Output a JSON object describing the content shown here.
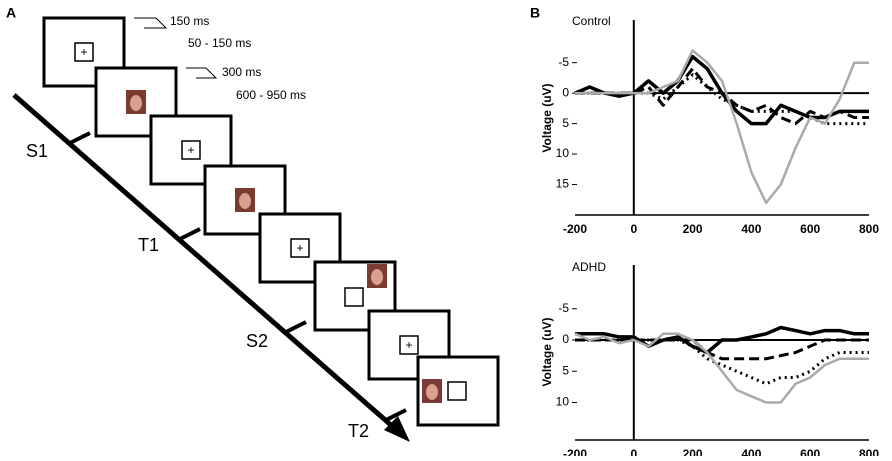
{
  "panel_a": {
    "label": "A",
    "timings": [
      "150 ms",
      "50 - 150 ms",
      "300 ms",
      "600 - 950 ms"
    ],
    "fixation": "+",
    "trial_labels": [
      "S1",
      "T1",
      "S2",
      "T2"
    ]
  },
  "panel_b": {
    "label": "B"
  },
  "chart_data": [
    {
      "type": "line",
      "title": "Control",
      "y_label": "Voltage (uV)",
      "y_inverted": true,
      "xlim": [
        -200,
        800
      ],
      "xticks": [
        -200,
        0,
        200,
        400,
        600,
        800
      ],
      "ylim": [
        -12,
        20
      ],
      "yticks": [
        -5,
        0,
        5,
        10,
        15
      ],
      "x": [
        -200,
        -150,
        -100,
        -50,
        0,
        50,
        100,
        150,
        200,
        250,
        300,
        350,
        400,
        450,
        500,
        550,
        600,
        650,
        700,
        750,
        800
      ],
      "series": [
        {
          "color": "#000000",
          "dash": "solid",
          "width": 3.5,
          "values": [
            0,
            -1,
            0,
            0.5,
            0,
            -2,
            0,
            -2,
            -6,
            -4,
            0,
            3,
            5,
            5,
            2,
            3,
            4,
            4,
            3,
            3,
            3
          ]
        },
        {
          "color": "#000000",
          "dash": "dashed",
          "width": 3,
          "values": [
            0,
            0,
            0,
            0,
            0,
            -1,
            2,
            -1,
            -4,
            -1,
            0,
            2,
            3,
            2,
            4,
            5,
            3,
            4,
            3,
            4,
            4
          ]
        },
        {
          "color": "#000000",
          "dash": "dotted",
          "width": 3,
          "values": [
            0,
            0,
            0,
            0,
            0,
            0,
            1,
            -1,
            -3,
            -1,
            1,
            2,
            3,
            3,
            3,
            3,
            4,
            5,
            5,
            5,
            5
          ]
        },
        {
          "color": "#aaaaaa",
          "dash": "solid",
          "width": 2.5,
          "values": [
            0,
            0,
            0,
            0,
            0,
            0,
            -1,
            -2,
            -7,
            -5,
            -2,
            5,
            13,
            18,
            15,
            9,
            4,
            5,
            1,
            -5,
            -5
          ]
        }
      ]
    },
    {
      "type": "line",
      "title": "ADHD",
      "y_label": "Voltage (uV)",
      "y_inverted": true,
      "xlim": [
        -200,
        800
      ],
      "xticks": [
        -200,
        0,
        200,
        400,
        600,
        800
      ],
      "ylim": [
        -12,
        16
      ],
      "yticks": [
        -5,
        0,
        5,
        10
      ],
      "x": [
        -200,
        -150,
        -100,
        -50,
        0,
        50,
        100,
        150,
        200,
        250,
        300,
        350,
        400,
        450,
        500,
        550,
        600,
        650,
        700,
        750,
        800
      ],
      "series": [
        {
          "color": "#000000",
          "dash": "solid",
          "width": 3.5,
          "values": [
            -1,
            -1,
            -1,
            -0.5,
            -0.5,
            1,
            0,
            -0.5,
            1,
            2,
            0,
            0,
            -0.5,
            -1,
            -2,
            -1.5,
            -1,
            -1.5,
            -1.5,
            -1,
            -1
          ]
        },
        {
          "color": "#000000",
          "dash": "dashed",
          "width": 3,
          "values": [
            0,
            0,
            0,
            0,
            0,
            0,
            0,
            0,
            0,
            2,
            3,
            3,
            3,
            3,
            2.5,
            2,
            1,
            0,
            0,
            0,
            0
          ]
        },
        {
          "color": "#000000",
          "dash": "dotted",
          "width": 3,
          "values": [
            0,
            0,
            0,
            0,
            0,
            0,
            0,
            0,
            1,
            3,
            4,
            5,
            6,
            7,
            6,
            6,
            5,
            3,
            2,
            2,
            2
          ]
        },
        {
          "color": "#aaaaaa",
          "dash": "solid",
          "width": 2.5,
          "values": [
            -1,
            0,
            -0.5,
            0.5,
            0,
            1,
            -1,
            -1,
            0,
            2,
            5,
            8,
            9,
            10,
            10,
            7,
            6,
            4,
            3,
            3,
            3
          ]
        }
      ]
    }
  ]
}
